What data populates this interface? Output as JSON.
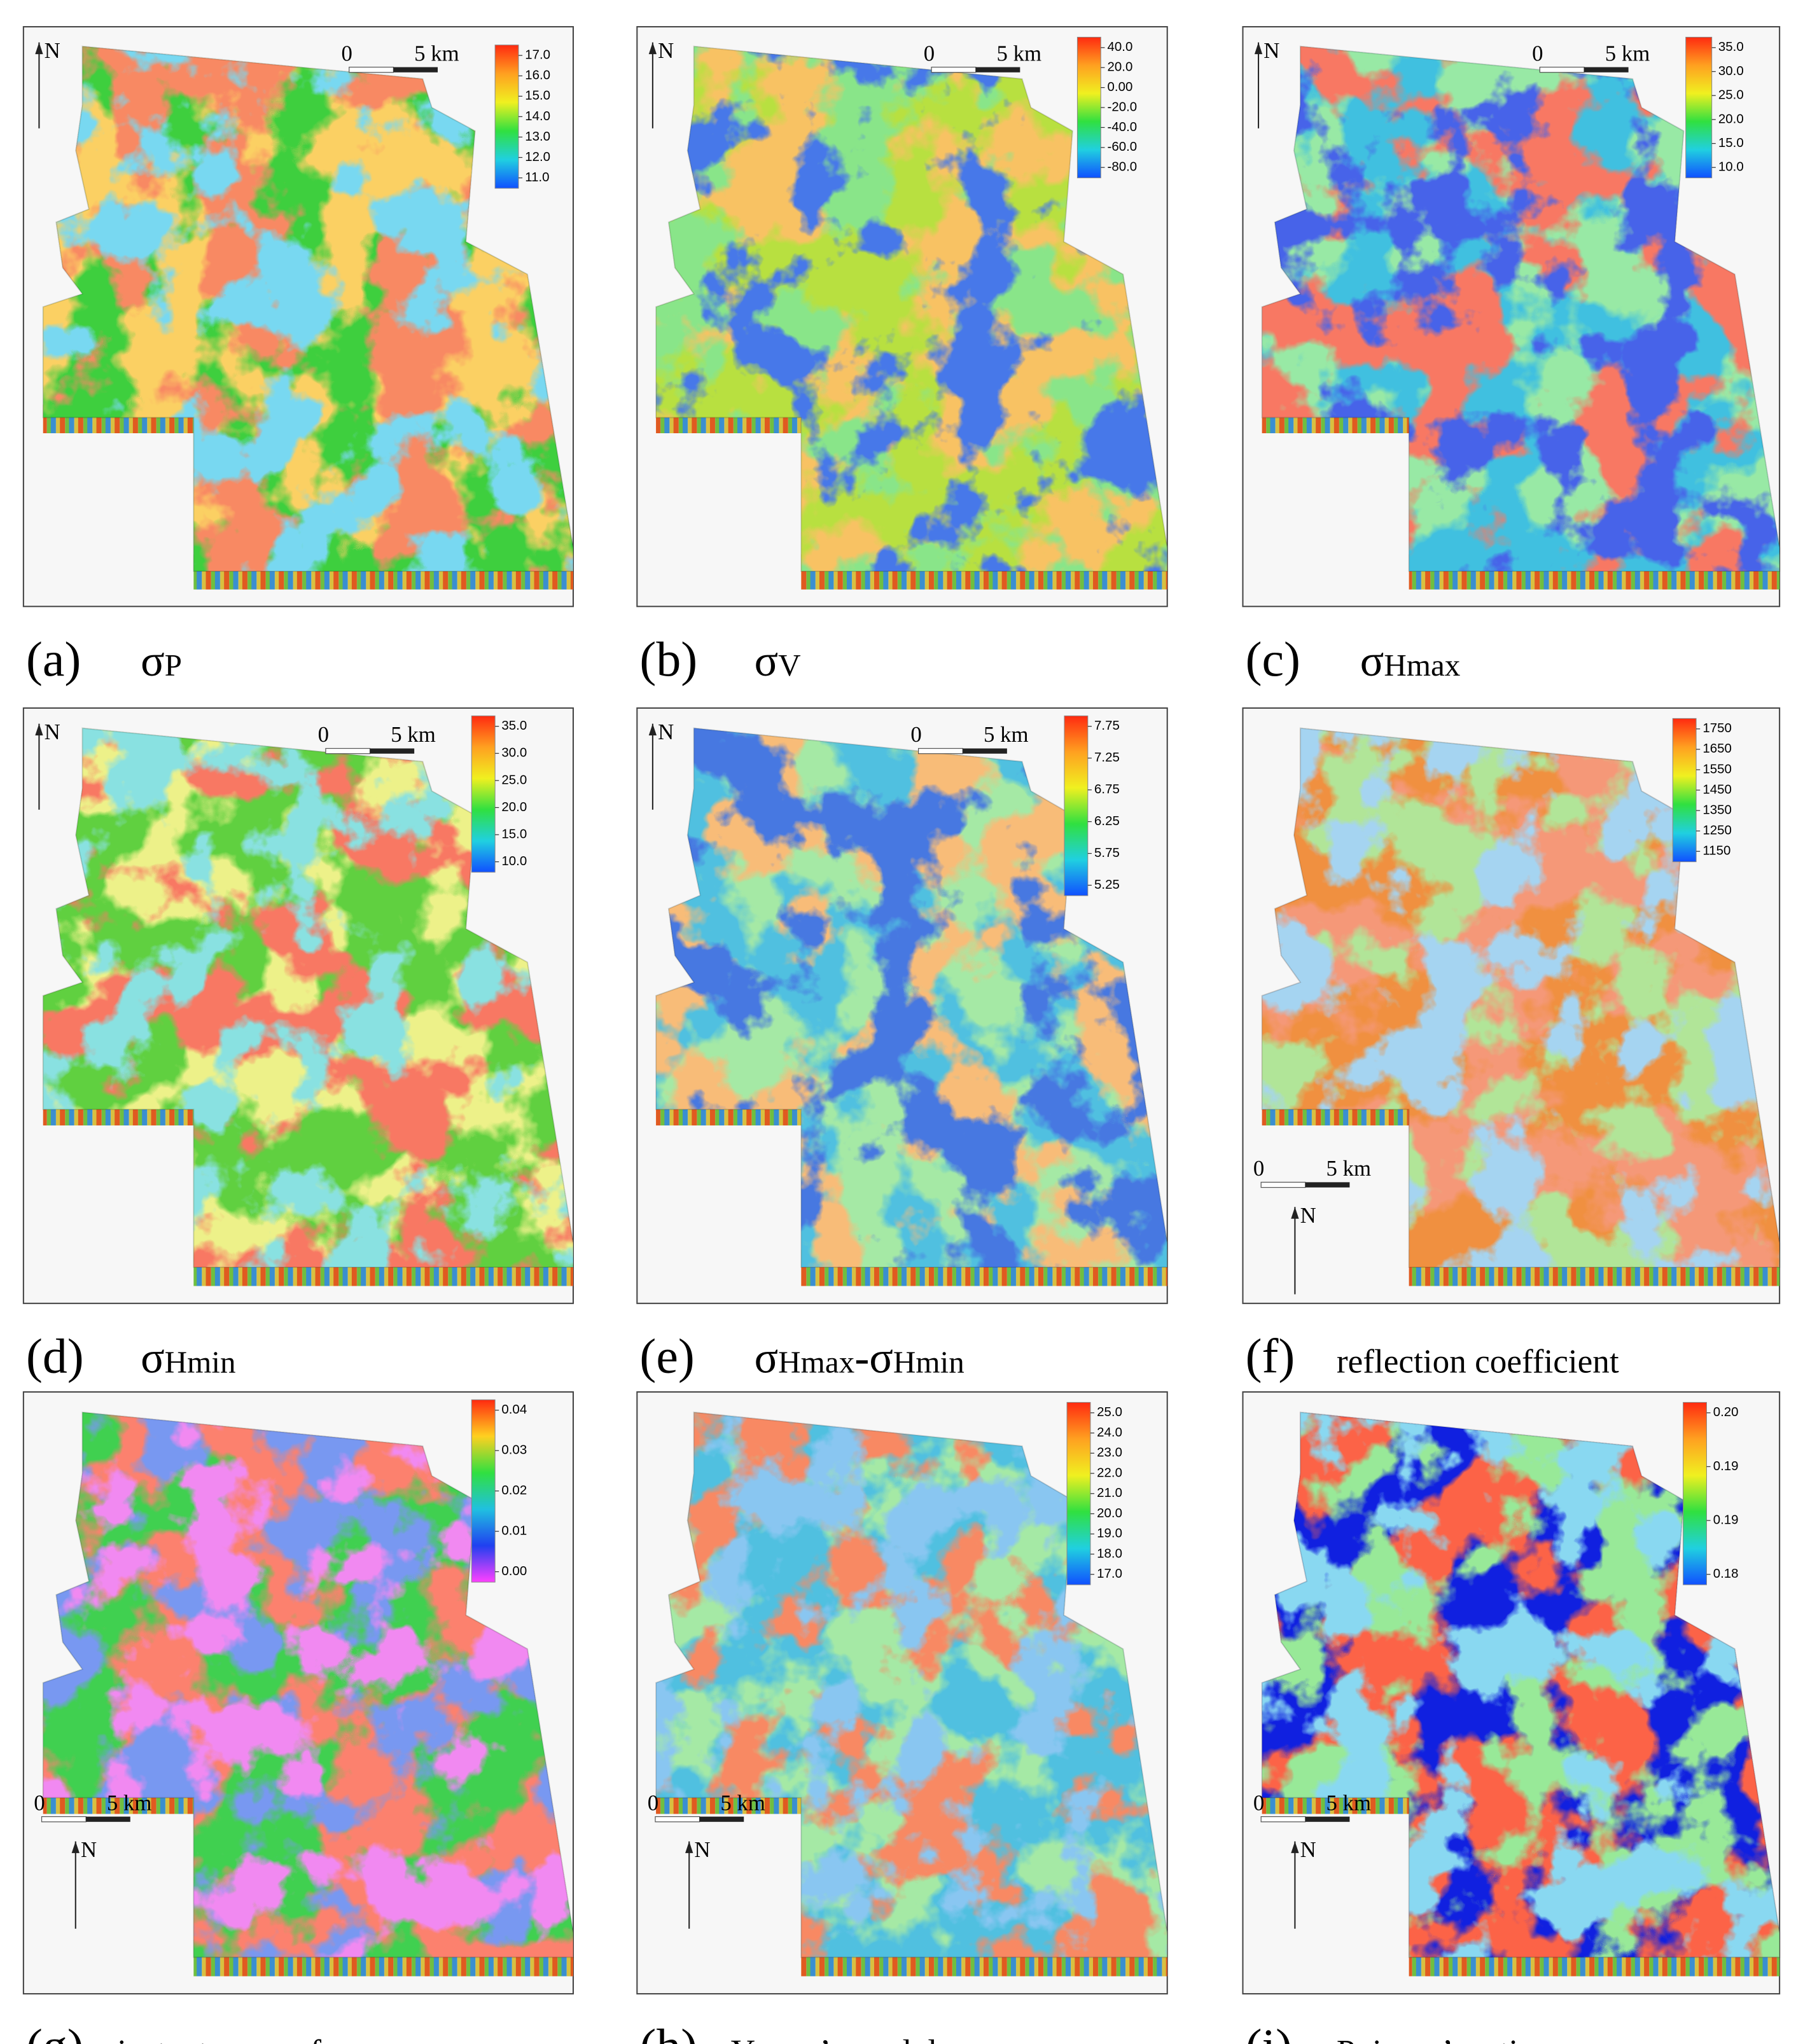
{
  "panels": [
    {
      "label": "(a)",
      "caption": [
        {
          "text": "σ"
        },
        {
          "text": "P",
          "small": true
        }
      ],
      "colorbar": [
        "17.0",
        "16.0",
        "15.0",
        "14.0",
        "13.0",
        "12.0",
        "11.0"
      ],
      "scale": {
        "zero": "0",
        "distance": "5 km"
      },
      "north": "N"
    },
    {
      "label": "(b)",
      "caption": [
        {
          "text": "σ"
        },
        {
          "text": "V",
          "small": true
        }
      ],
      "colorbar": [
        "40.0",
        "20.0",
        "0.00",
        "-20.0",
        "-40.0",
        "-60.0",
        "-80.0"
      ],
      "scale": {
        "zero": "0",
        "distance": "5 km"
      },
      "north": "N"
    },
    {
      "label": "(c)",
      "caption": [
        {
          "text": "σ"
        },
        {
          "text": "Hmax",
          "small": true
        }
      ],
      "colorbar": [
        "35.0",
        "30.0",
        "25.0",
        "20.0",
        "15.0",
        "10.0"
      ],
      "scale": {
        "zero": "0",
        "distance": "5 km"
      },
      "north": "N"
    },
    {
      "label": "(d)",
      "caption": [
        {
          "text": "σ"
        },
        {
          "text": "Hmin",
          "small": true
        }
      ],
      "colorbar": [
        "35.0",
        "30.0",
        "25.0",
        "20.0",
        "15.0",
        "10.0"
      ],
      "scale": {
        "zero": "0",
        "distance": "5 km"
      },
      "north": "N"
    },
    {
      "label": "(e)",
      "caption": [
        {
          "text": "σ"
        },
        {
          "text": "Hmax",
          "small": true
        },
        {
          "text": "-σ"
        },
        {
          "text": "Hmin",
          "small": true
        }
      ],
      "colorbar": [
        "7.75",
        "7.25",
        "6.75",
        "6.25",
        "5.75",
        "5.25"
      ],
      "scale": {
        "zero": "0",
        "distance": "5 km"
      },
      "north": "N"
    },
    {
      "label": "(f)",
      "caption": [
        {
          "text": "reflection coefficient",
          "small": true
        }
      ],
      "colorbar": [
        "1750",
        "1650",
        "1550",
        "1450",
        "1350",
        "1250",
        "1150"
      ],
      "scale": {
        "zero": "0",
        "distance": "5 km"
      },
      "north": "N"
    },
    {
      "label": "(g)",
      "caption": [
        {
          "text": "instantaneous frequency",
          "small": true
        }
      ],
      "colorbar": [
        "0.04",
        "0.03",
        "0.02",
        "0.01",
        "0.00"
      ],
      "scale": {
        "zero": "0",
        "distance": "5 km"
      },
      "north": "N"
    },
    {
      "label": "(h)",
      "caption": [
        {
          "text": "Young’s modulus",
          "small": true
        }
      ],
      "colorbar": [
        "25.0",
        "24.0",
        "23.0",
        "22.0",
        "21.0",
        "20.0",
        "19.0",
        "18.0",
        "17.0"
      ],
      "scale": {
        "zero": "0",
        "distance": "5 km"
      },
      "north": "N"
    },
    {
      "label": "(i)",
      "caption": [
        {
          "text": "Poisson’s ratio",
          "small": true
        }
      ],
      "colorbar": [
        "0.20",
        "0.19",
        "0.19",
        "0.18"
      ],
      "scale": {
        "zero": "0",
        "distance": "5 km"
      },
      "north": "N"
    }
  ]
}
